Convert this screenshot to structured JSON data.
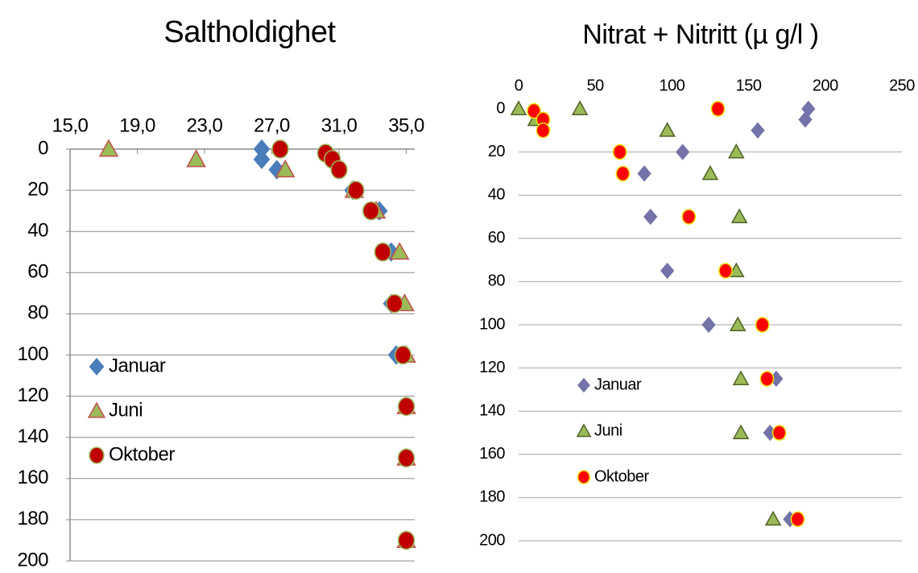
{
  "chart_data": [
    {
      "type": "scatter",
      "title": "Saltholdighet",
      "xlim": [
        15,
        35.5
      ],
      "xticks": [
        {
          "value": 15,
          "label": "15,0"
        },
        {
          "value": 19,
          "label": "19,0"
        },
        {
          "value": 23,
          "label": "23,0"
        },
        {
          "value": 27,
          "label": "27,0"
        },
        {
          "value": 31,
          "label": "31,0"
        },
        {
          "value": 35,
          "label": "35,0"
        }
      ],
      "ylim": [
        200,
        0
      ],
      "yticks": [
        0,
        20,
        40,
        60,
        80,
        100,
        120,
        140,
        160,
        180,
        200
      ],
      "grid": true,
      "legend": "lower left",
      "series": [
        {
          "name": "Januar",
          "marker": "diamond",
          "color": "#4a7ebb",
          "edgecolor": "#4a7ebb",
          "x": [
            26.4,
            26.4,
            27.3,
            31.8,
            33.4,
            34.1,
            34.1,
            34.4,
            35.0,
            35.0,
            35.0
          ],
          "values": [
            0,
            5,
            10,
            20,
            30,
            50,
            75,
            100,
            125,
            150,
            190
          ]
        },
        {
          "name": "Juni",
          "marker": "triangle",
          "color": "#9bbb59",
          "edgecolor": "#c0504d",
          "x": [
            17.3,
            22.5,
            27.8,
            31.9,
            33.2,
            34.6,
            34.9,
            35.0,
            35.0,
            35.0,
            35.0
          ],
          "values": [
            0,
            5,
            10,
            20,
            30,
            50,
            75,
            100,
            125,
            150,
            190
          ]
        },
        {
          "name": "Oktober",
          "marker": "circle",
          "color": "#c00000",
          "edgecolor": "#9bbb59",
          "x": [
            27.5,
            30.2,
            30.6,
            31.0,
            32.0,
            32.9,
            33.6,
            34.3,
            34.8,
            35.0,
            35.0,
            35.0
          ],
          "values": [
            0,
            2,
            5,
            10,
            20,
            30,
            50,
            75,
            100,
            125,
            150,
            190
          ]
        }
      ]
    },
    {
      "type": "scatter",
      "title": "Nitrat + Nitritt (µ g/l )",
      "xlim": [
        0,
        250
      ],
      "xticks": [
        0,
        50,
        100,
        150,
        200,
        250
      ],
      "ylim": [
        200,
        0
      ],
      "yticks": [
        0,
        20,
        40,
        60,
        80,
        100,
        120,
        140,
        160,
        180,
        200
      ],
      "grid": true,
      "legend": "lower center",
      "series": [
        {
          "name": "Januar",
          "marker": "diamond",
          "color": "#7373a9",
          "edgecolor": "#7373a9",
          "x": [
            189,
            187,
            156,
            107,
            82,
            86,
            97,
            124,
            168,
            164,
            177
          ],
          "values": [
            0,
            5,
            10,
            20,
            30,
            50,
            75,
            100,
            125,
            150,
            190
          ]
        },
        {
          "name": "Juni",
          "marker": "triangle",
          "color": "#9bbb59",
          "edgecolor": "#4f6228",
          "x": [
            0,
            11,
            40,
            97,
            142,
            125,
            144,
            142,
            143,
            145,
            145,
            166
          ],
          "values": [
            0,
            5,
            0,
            10,
            20,
            30,
            50,
            75,
            100,
            125,
            150,
            190
          ]
        },
        {
          "name": "Oktober",
          "marker": "circle",
          "color": "#ff0000",
          "edgecolor": "#e6e600",
          "x": [
            130,
            10,
            16,
            16,
            66,
            68,
            111,
            135,
            159,
            162,
            170,
            182
          ],
          "values": [
            0,
            1,
            5,
            10,
            20,
            30,
            50,
            75,
            100,
            125,
            150,
            190
          ]
        }
      ]
    }
  ]
}
